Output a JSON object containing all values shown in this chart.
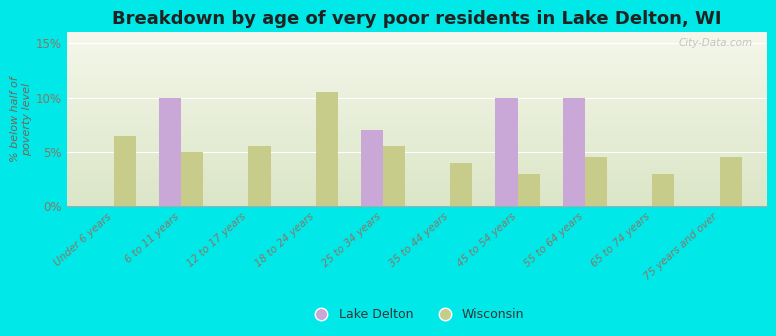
{
  "title": "Breakdown by age of very poor residents in Lake Delton, WI",
  "ylabel": "% below half of\npoverty level",
  "categories": [
    "Under 6 years",
    "6 to 11 years",
    "12 to 17 years",
    "18 to 24 years",
    "25 to 34 years",
    "35 to 44 years",
    "45 to 54 years",
    "55 to 64 years",
    "65 to 74 years",
    "75 years and over"
  ],
  "lake_delton": [
    0,
    10,
    0,
    0,
    7,
    0,
    10,
    10,
    0,
    0
  ],
  "wisconsin": [
    6.5,
    5,
    5.5,
    10.5,
    5.5,
    4,
    3,
    4.5,
    3,
    4.5
  ],
  "lake_delton_color": "#c9a8d8",
  "wisconsin_color": "#c8cc8a",
  "background_color": "#00e8e8",
  "ylim": [
    0,
    16
  ],
  "yticks": [
    0,
    5,
    10,
    15
  ],
  "ytick_labels": [
    "0%",
    "5%",
    "10%",
    "15%"
  ],
  "title_fontsize": 13,
  "watermark": "City-Data.com",
  "grid_color": "#ddddcc",
  "tick_label_color": "#887766",
  "ylabel_color": "#776655"
}
